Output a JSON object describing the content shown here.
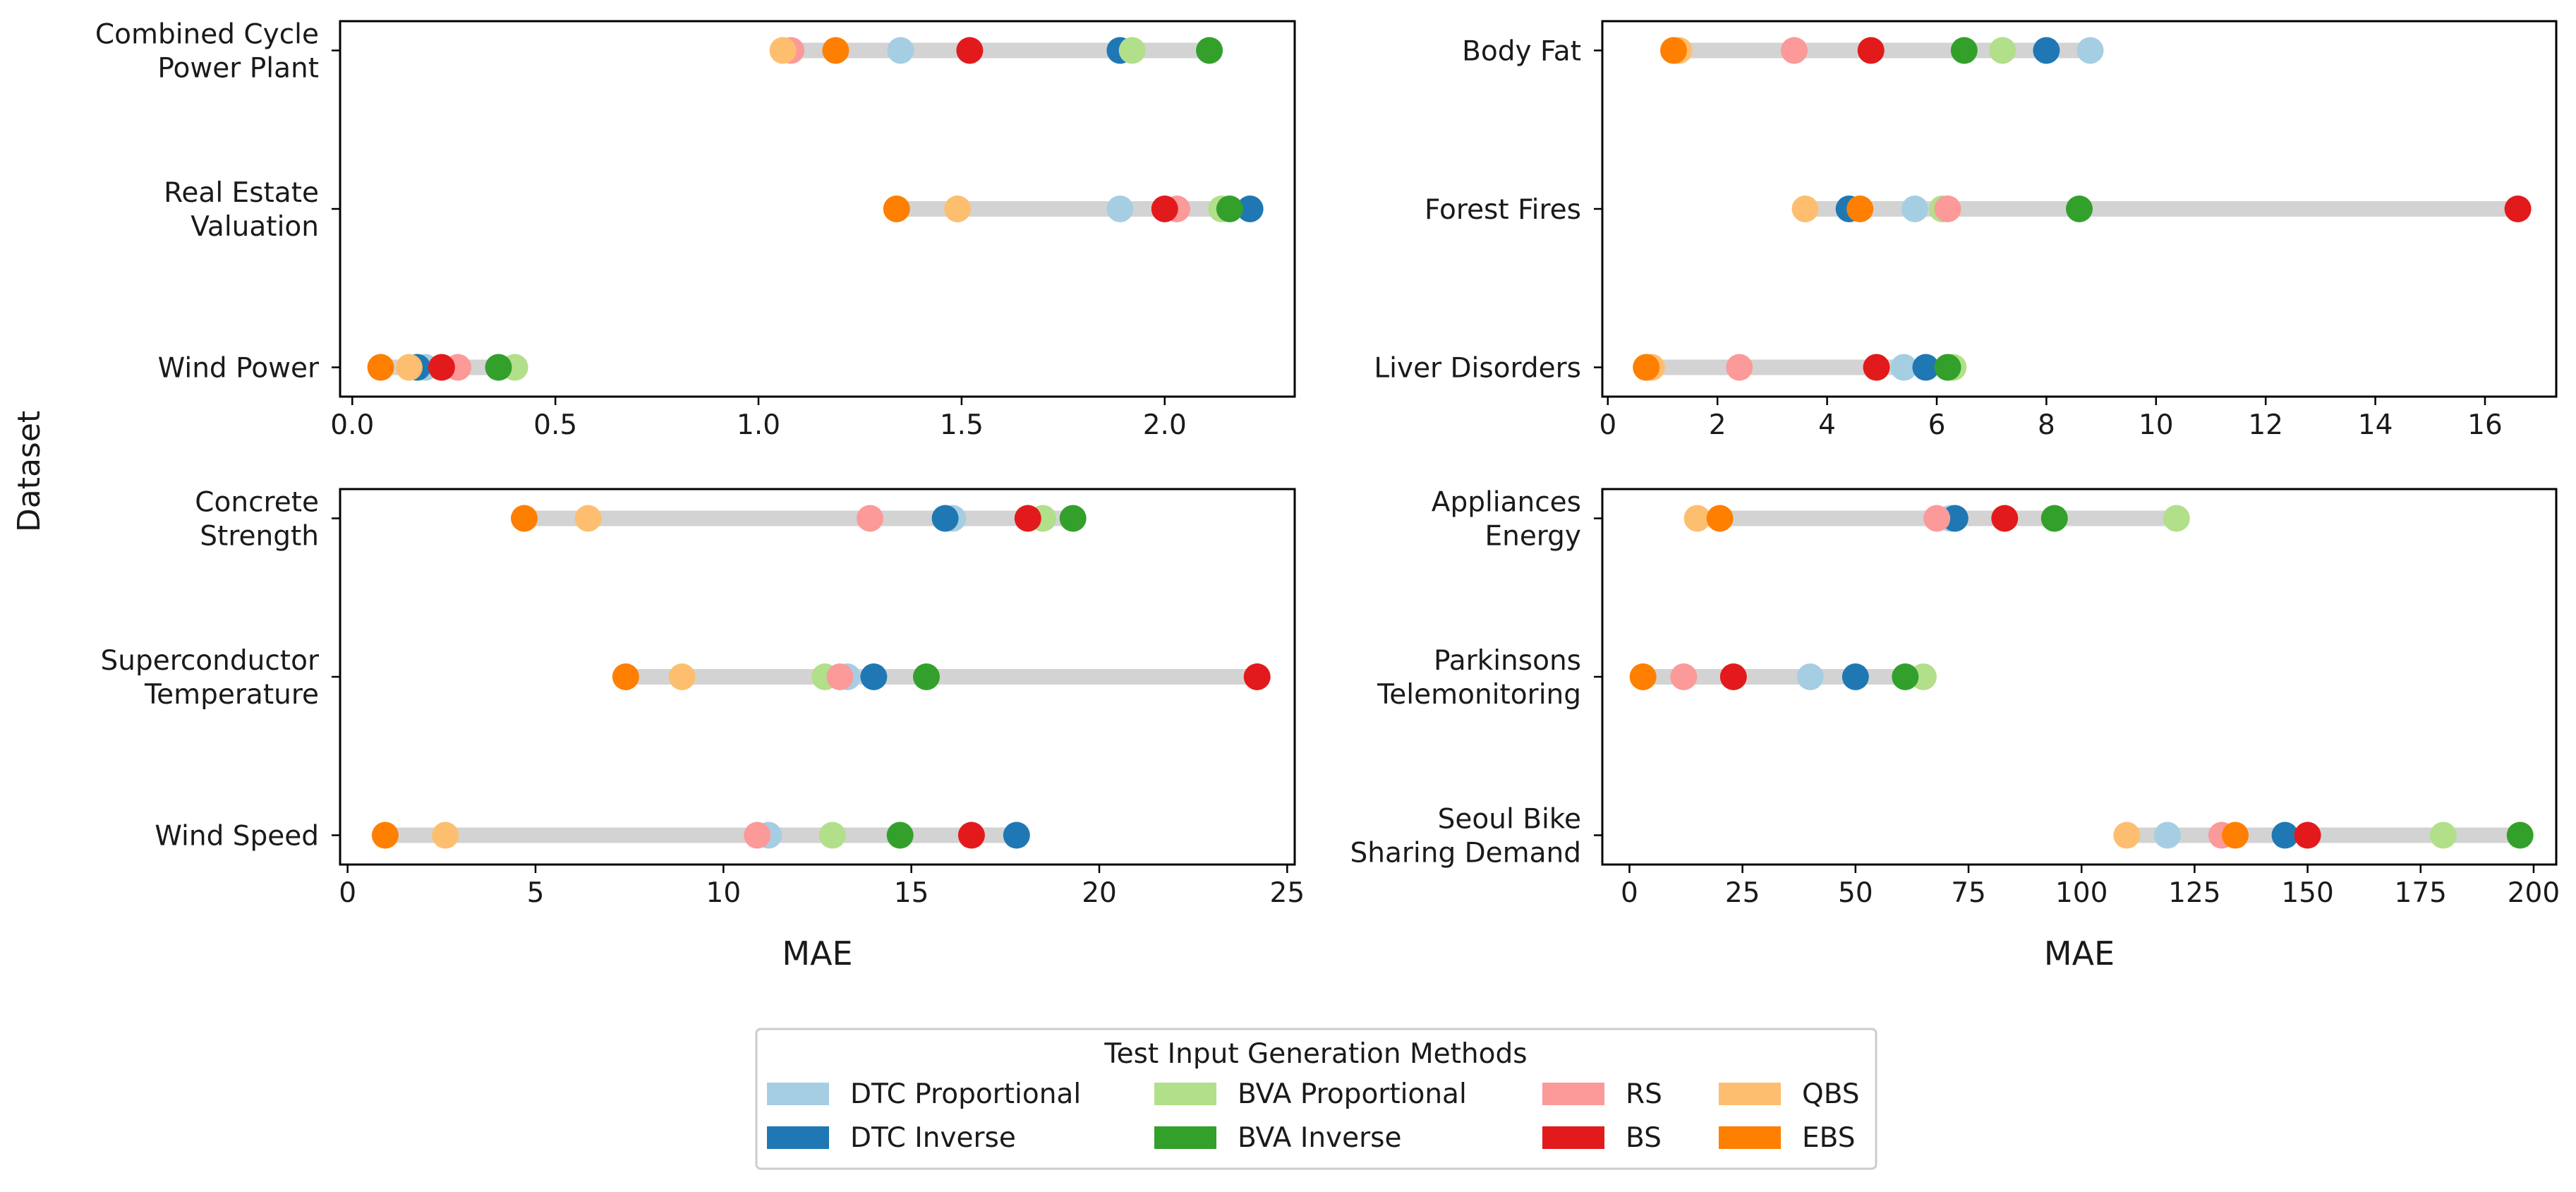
{
  "figure": {
    "ylabel": "Dataset",
    "legend_title": "Test Input Generation Methods",
    "legend_position": "bottom-center"
  },
  "methods": [
    {
      "key": "dtc_prop",
      "name": "DTC Proportional",
      "color": "#a6cee3"
    },
    {
      "key": "dtc_inv",
      "name": "DTC Inverse",
      "color": "#1f78b4"
    },
    {
      "key": "bva_prop",
      "name": "BVA Proportional",
      "color": "#b2df8a"
    },
    {
      "key": "bva_inv",
      "name": "BVA Inverse",
      "color": "#33a02c"
    },
    {
      "key": "rs",
      "name": "RS",
      "color": "#fb9a99"
    },
    {
      "key": "bs",
      "name": "BS",
      "color": "#e31a1c"
    },
    {
      "key": "qbs",
      "name": "QBS",
      "color": "#fdbf6f"
    },
    {
      "key": "ebs",
      "name": "EBS",
      "color": "#ff7f00"
    }
  ],
  "range_bar_color": "#d3d3d3",
  "chart_data": [
    {
      "type": "scatter",
      "panel": "top-left",
      "xlabel": "",
      "xlim": [
        -0.03,
        2.32
      ],
      "xticks": [
        0.0,
        0.5,
        1.0,
        1.5,
        2.0
      ],
      "tick_labels": [
        "0.0",
        "0.5",
        "1.0",
        "1.5",
        "2.0"
      ],
      "categories": [
        {
          "label": [
            "Combined Cycle",
            "Power Plant"
          ],
          "values": {
            "dtc_prop": 1.35,
            "dtc_inv": 1.89,
            "bva_prop": 1.92,
            "bva_inv": 2.11,
            "rs": 1.08,
            "bs": 1.52,
            "qbs": 1.06,
            "ebs": 1.19
          }
        },
        {
          "label": [
            "Real Estate",
            "Valuation"
          ],
          "values": {
            "dtc_prop": 1.89,
            "dtc_inv": 2.21,
            "bva_prop": 2.14,
            "bva_inv": 2.16,
            "rs": 2.03,
            "bs": 2.0,
            "qbs": 1.49,
            "ebs": 1.34
          }
        },
        {
          "label": [
            "Wind Power"
          ],
          "values": {
            "dtc_prop": 0.18,
            "dtc_inv": 0.16,
            "bva_prop": 0.4,
            "bva_inv": 0.36,
            "rs": 0.26,
            "bs": 0.22,
            "qbs": 0.14,
            "ebs": 0.07
          }
        }
      ]
    },
    {
      "type": "scatter",
      "panel": "top-right",
      "xlabel": "",
      "xlim": [
        -0.1,
        17.3
      ],
      "xticks": [
        0,
        2,
        4,
        6,
        8,
        10,
        12,
        14,
        16
      ],
      "tick_labels": [
        "0",
        "2",
        "4",
        "6",
        "8",
        "10",
        "12",
        "14",
        "16"
      ],
      "categories": [
        {
          "label": [
            "Body Fat"
          ],
          "values": {
            "dtc_prop": 8.8,
            "dtc_inv": 8.0,
            "bva_prop": 7.2,
            "bva_inv": 6.5,
            "rs": 3.4,
            "bs": 4.8,
            "qbs": 1.3,
            "ebs": 1.2
          }
        },
        {
          "label": [
            "Forest Fires"
          ],
          "values": {
            "dtc_prop": 5.6,
            "dtc_inv": 4.4,
            "bva_prop": 6.1,
            "bva_inv": 8.6,
            "rs": 6.2,
            "bs": 16.6,
            "qbs": 3.6,
            "ebs": 4.6
          }
        },
        {
          "label": [
            "Liver Disorders"
          ],
          "values": {
            "dtc_prop": 5.4,
            "dtc_inv": 5.8,
            "bva_prop": 6.3,
            "bva_inv": 6.2,
            "rs": 2.4,
            "bs": 4.9,
            "qbs": 0.8,
            "ebs": 0.7
          }
        }
      ]
    },
    {
      "type": "scatter",
      "panel": "bottom-left",
      "xlabel": "MAE",
      "xlim": [
        -0.2,
        25.2
      ],
      "xticks": [
        0,
        5,
        10,
        15,
        20,
        25
      ],
      "tick_labels": [
        "0",
        "5",
        "10",
        "15",
        "20",
        "25"
      ],
      "categories": [
        {
          "label": [
            "Concrete",
            "Strength"
          ],
          "values": {
            "dtc_prop": 16.1,
            "dtc_inv": 15.9,
            "bva_prop": 18.5,
            "bva_inv": 19.3,
            "rs": 13.9,
            "bs": 18.1,
            "qbs": 6.4,
            "ebs": 4.7
          }
        },
        {
          "label": [
            "Superconductor",
            "Temperature"
          ],
          "values": {
            "dtc_prop": 13.3,
            "dtc_inv": 14.0,
            "bva_prop": 12.7,
            "bva_inv": 15.4,
            "rs": 13.1,
            "bs": 24.2,
            "qbs": 8.9,
            "ebs": 7.4
          }
        },
        {
          "label": [
            "Wind Speed"
          ],
          "values": {
            "dtc_prop": 11.2,
            "dtc_inv": 17.8,
            "bva_prop": 12.9,
            "bva_inv": 14.7,
            "rs": 10.9,
            "bs": 16.6,
            "qbs": 2.6,
            "ebs": 1.0
          }
        }
      ]
    },
    {
      "type": "scatter",
      "panel": "bottom-right",
      "xlabel": "MAE",
      "xlim": [
        -6,
        205
      ],
      "xticks": [
        0,
        25,
        50,
        75,
        100,
        125,
        150,
        175,
        200
      ],
      "tick_labels": [
        "0",
        "25",
        "50",
        "75",
        "100",
        "125",
        "150",
        "175",
        "200"
      ],
      "categories": [
        {
          "label": [
            "Appliances",
            "Energy"
          ],
          "values": {
            "dtc_prop": 71,
            "dtc_inv": 72,
            "bva_prop": 121,
            "bva_inv": 94,
            "rs": 68,
            "bs": 83,
            "qbs": 15,
            "ebs": 20
          }
        },
        {
          "label": [
            "Parkinsons",
            "Telemonitoring"
          ],
          "values": {
            "dtc_prop": 40,
            "dtc_inv": 50,
            "bva_prop": 65,
            "bva_inv": 61,
            "rs": 12,
            "bs": 23,
            "qbs": 3,
            "ebs": 3
          }
        },
        {
          "label": [
            "Seoul Bike",
            "Sharing Demand"
          ],
          "values": {
            "dtc_prop": 119,
            "dtc_inv": 145,
            "bva_prop": 180,
            "bva_inv": 197,
            "rs": 131,
            "bs": 150,
            "qbs": 110,
            "ebs": 134
          }
        }
      ]
    }
  ]
}
